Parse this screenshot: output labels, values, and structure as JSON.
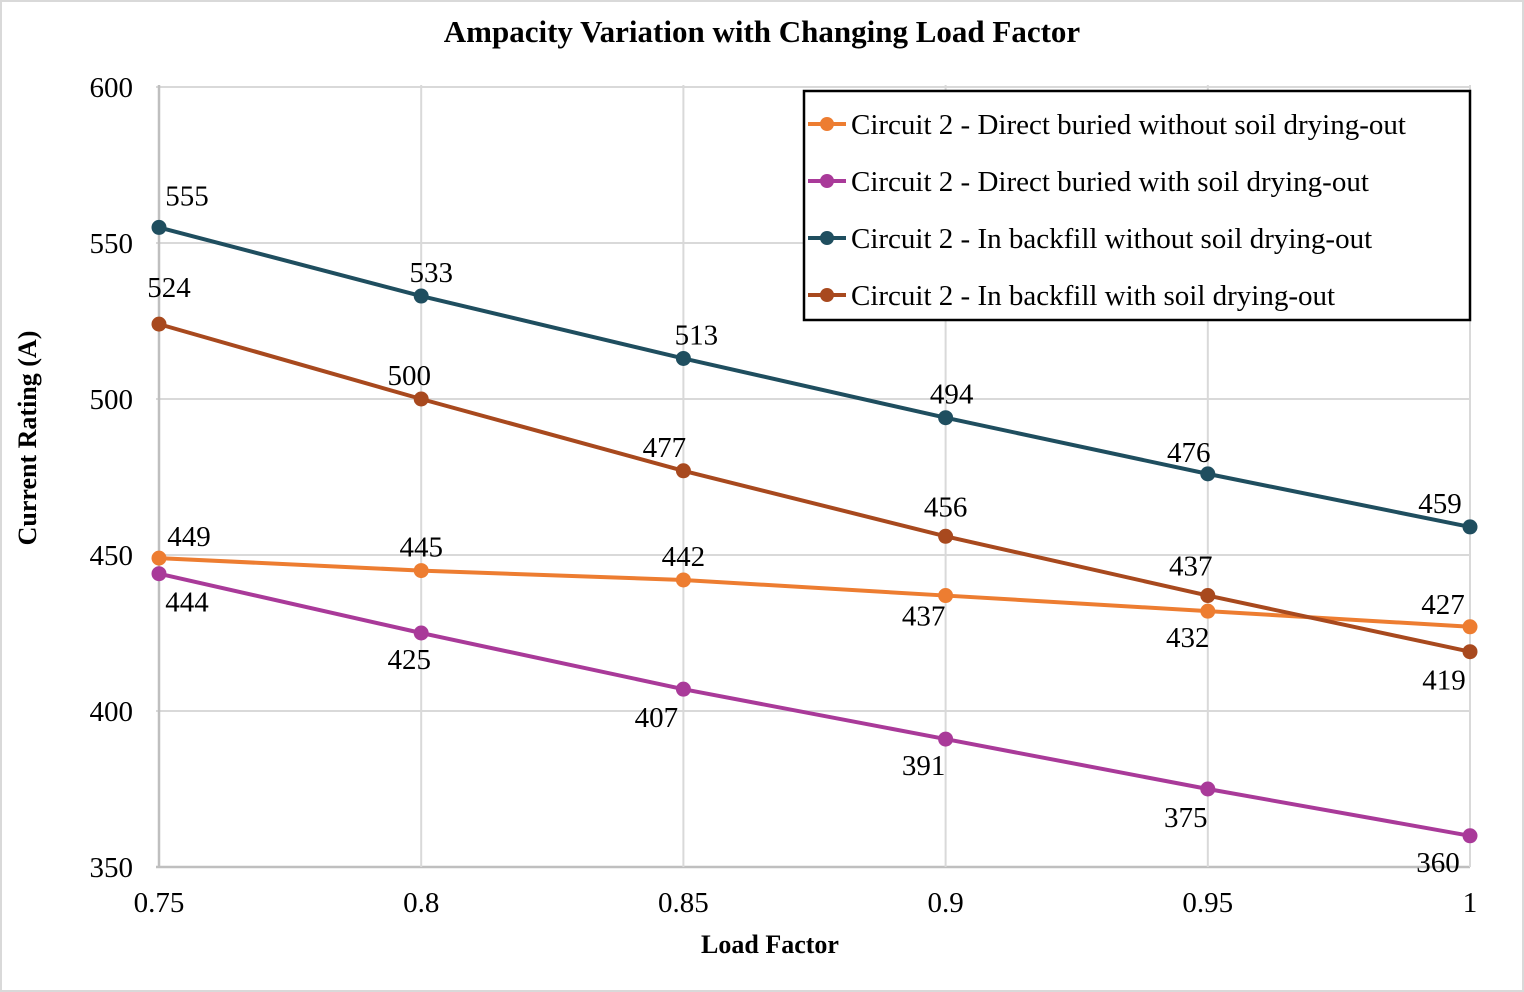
{
  "chart_data": {
    "type": "line",
    "title": "Ampacity Variation with Changing Load Factor",
    "xlabel": "Load Factor",
    "ylabel": "Current Rating (A)",
    "xlim": [
      0.75,
      1
    ],
    "ylim": [
      350,
      600
    ],
    "x": [
      0.75,
      0.8,
      0.85,
      0.9,
      0.95,
      1
    ],
    "x_tick_labels": [
      "0.75",
      "0.8",
      "0.85",
      "0.9",
      "0.95",
      "1"
    ],
    "y_ticks": [
      350,
      400,
      450,
      500,
      550,
      600
    ],
    "y_tick_labels": [
      "350",
      "400",
      "450",
      "500",
      "550",
      "600"
    ],
    "grid": true,
    "legend_position": "top-right",
    "series": [
      {
        "name": "Circuit 2 - Direct buried without soil drying-out",
        "color": "#ED7D31",
        "values": [
          449,
          445,
          442,
          437,
          432,
          427
        ],
        "label_offsets": [
          [
            30,
            -12
          ],
          [
            0,
            -14
          ],
          [
            0,
            -14
          ],
          [
            -22,
            30
          ],
          [
            -20,
            36
          ],
          [
            -27,
            -13
          ]
        ]
      },
      {
        "name": "Circuit 2 - Direct buried with soil drying-out",
        "color": "#A93A99",
        "values": [
          444,
          425,
          407,
          391,
          375,
          360
        ],
        "label_offsets": [
          [
            28,
            38
          ],
          [
            -12,
            36
          ],
          [
            -27,
            38
          ],
          [
            -22,
            36
          ],
          [
            -22,
            38
          ],
          [
            -32,
            36
          ]
        ]
      },
      {
        "name": "Circuit 2 - In backfill without soil drying-out",
        "color": "#1F4E5F",
        "values": [
          555,
          533,
          513,
          494,
          476,
          459
        ],
        "label_offsets": [
          [
            28,
            -22
          ],
          [
            10,
            -14
          ],
          [
            13,
            -14
          ],
          [
            6,
            -14
          ],
          [
            -19,
            -12
          ],
          [
            -30,
            -14
          ]
        ]
      },
      {
        "name": "Circuit 2 - In backfill with soil drying-out",
        "color": "#A8491E",
        "values": [
          524,
          500,
          477,
          456,
          437,
          419
        ],
        "label_offsets": [
          [
            10,
            -27
          ],
          [
            -12,
            -14
          ],
          [
            -19,
            -14
          ],
          [
            0,
            -20
          ],
          [
            -17,
            -20
          ],
          [
            -26,
            38
          ]
        ]
      }
    ],
    "colors": {
      "gridline": "#D9D9D9",
      "axis_line": "#BFBFBF",
      "legend_border": "#000000",
      "text": "#000000",
      "background": "#FFFFFF"
    }
  }
}
